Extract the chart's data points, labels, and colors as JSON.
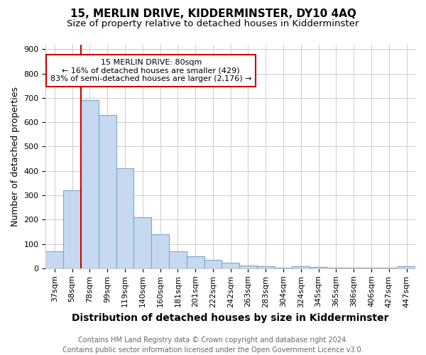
{
  "title1": "15, MERLIN DRIVE, KIDDERMINSTER, DY10 4AQ",
  "title2": "Size of property relative to detached houses in Kidderminster",
  "xlabel": "Distribution of detached houses by size in Kidderminster",
  "ylabel": "Number of detached properties",
  "categories": [
    "37sqm",
    "58sqm",
    "78sqm",
    "99sqm",
    "119sqm",
    "140sqm",
    "160sqm",
    "181sqm",
    "201sqm",
    "222sqm",
    "242sqm",
    "263sqm",
    "283sqm",
    "304sqm",
    "324sqm",
    "345sqm",
    "365sqm",
    "386sqm",
    "406sqm",
    "427sqm",
    "447sqm"
  ],
  "values": [
    70,
    320,
    690,
    630,
    410,
    210,
    140,
    70,
    50,
    35,
    22,
    12,
    8,
    3,
    8,
    5,
    3,
    2,
    1,
    1,
    8
  ],
  "bar_color": "#c6d9f0",
  "bar_edge_color": "#7ba7c9",
  "vline_x": 1.5,
  "vline_color": "#cc0000",
  "annotation_line1": "15 MERLIN DRIVE: 80sqm",
  "annotation_line2": "← 16% of detached houses are smaller (429)",
  "annotation_line3": "83% of semi-detached houses are larger (2,176) →",
  "annotation_box_color": "#cc0000",
  "ylim": [
    0,
    920
  ],
  "yticks": [
    0,
    100,
    200,
    300,
    400,
    500,
    600,
    700,
    800,
    900
  ],
  "footer1": "Contains HM Land Registry data © Crown copyright and database right 2024.",
  "footer2": "Contains public sector information licensed under the Open Government Licence v3.0.",
  "bg_color": "#ffffff",
  "grid_color": "#cccccc"
}
